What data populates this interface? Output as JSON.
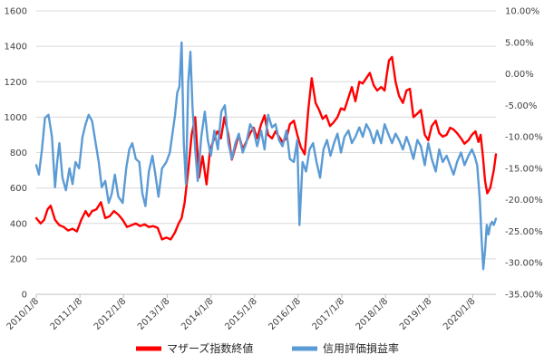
{
  "chart_data": {
    "type": "line",
    "title": "",
    "xlabel": "",
    "ylabel": "",
    "ylim_left": [
      0,
      1600
    ],
    "ylim_right": [
      -35,
      10
    ],
    "y_left_ticks": [
      "0",
      "200",
      "400",
      "600",
      "800",
      "1000",
      "1200",
      "1400",
      "1600"
    ],
    "y_right_ticks": [
      "-35.00%",
      "-30.00%",
      "-25.00%",
      "-20.00%",
      "-15.00%",
      "-10.00%",
      "-5.00%",
      "0.00%",
      "5.00%",
      "10.00%"
    ],
    "x_ticks": [
      "2010/1/8",
      "2011/1/8",
      "2012/1/8",
      "2013/1/8",
      "2014/1/8",
      "2015/1/8",
      "2016/1/8",
      "2017/1/8",
      "2018/1/8",
      "2019/1/8",
      "2020/1/8"
    ],
    "x_range": [
      2010.02,
      2020.55
    ],
    "grid": true,
    "legend_position": "bottom",
    "series": [
      {
        "name": "マザーズ指数終値",
        "color": "#ff0000",
        "axis": "left",
        "x": [
          2010.02,
          2010.12,
          2010.2,
          2010.28,
          2010.35,
          2010.45,
          2010.55,
          2010.65,
          2010.75,
          2010.85,
          2010.95,
          2011.05,
          2011.15,
          2011.22,
          2011.3,
          2011.4,
          2011.5,
          2011.6,
          2011.7,
          2011.8,
          2011.9,
          2012.0,
          2012.1,
          2012.2,
          2012.3,
          2012.4,
          2012.5,
          2012.6,
          2012.7,
          2012.8,
          2012.9,
          2013.0,
          2013.1,
          2013.2,
          2013.28,
          2013.35,
          2013.42,
          2013.5,
          2013.58,
          2013.66,
          2013.75,
          2013.83,
          2013.92,
          2014.0,
          2014.08,
          2014.17,
          2014.25,
          2014.33,
          2014.42,
          2014.5,
          2014.58,
          2014.66,
          2014.75,
          2014.83,
          2014.92,
          2015.0,
          2015.08,
          2015.17,
          2015.25,
          2015.33,
          2015.42,
          2015.5,
          2015.58,
          2015.66,
          2015.75,
          2015.83,
          2015.92,
          2016.0,
          2016.08,
          2016.17,
          2016.25,
          2016.33,
          2016.42,
          2016.5,
          2016.58,
          2016.66,
          2016.75,
          2016.83,
          2016.92,
          2017.0,
          2017.08,
          2017.17,
          2017.25,
          2017.33,
          2017.42,
          2017.5,
          2017.58,
          2017.66,
          2017.75,
          2017.83,
          2017.92,
          2018.0,
          2018.05,
          2018.1,
          2018.17,
          2018.25,
          2018.33,
          2018.42,
          2018.5,
          2018.58,
          2018.66,
          2018.75,
          2018.83,
          2018.92,
          2019.0,
          2019.08,
          2019.17,
          2019.25,
          2019.33,
          2019.42,
          2019.5,
          2019.58,
          2019.66,
          2019.75,
          2019.83,
          2019.92,
          2020.0,
          2020.08,
          2020.15,
          2020.2,
          2020.25,
          2020.3,
          2020.35,
          2020.42,
          2020.5,
          2020.55
        ],
        "y": [
          430,
          400,
          420,
          480,
          500,
          420,
          390,
          380,
          360,
          370,
          355,
          420,
          470,
          440,
          470,
          480,
          520,
          430,
          440,
          470,
          450,
          420,
          380,
          390,
          400,
          385,
          395,
          380,
          385,
          375,
          310,
          320,
          310,
          350,
          400,
          430,
          520,
          700,
          900,
          1000,
          660,
          780,
          620,
          810,
          870,
          920,
          880,
          1000,
          900,
          760,
          830,
          900,
          820,
          860,
          910,
          940,
          880,
          960,
          1010,
          900,
          880,
          920,
          890,
          860,
          880,
          960,
          980,
          900,
          830,
          790,
          1040,
          1220,
          1080,
          1040,
          990,
          1010,
          950,
          970,
          1000,
          1050,
          1040,
          1110,
          1170,
          1090,
          1200,
          1190,
          1220,
          1250,
          1180,
          1150,
          1170,
          1150,
          1240,
          1320,
          1340,
          1200,
          1120,
          1080,
          1150,
          1160,
          1000,
          1020,
          1040,
          900,
          870,
          950,
          980,
          910,
          890,
          900,
          940,
          930,
          910,
          880,
          850,
          870,
          900,
          920,
          860,
          900,
          780,
          640,
          570,
          600,
          700,
          790
        ]
      },
      {
        "name": "信用評価損益率",
        "color": "#5b9bd5",
        "axis": "right",
        "x": [
          2010.02,
          2010.08,
          2010.15,
          2010.22,
          2010.3,
          2010.38,
          2010.45,
          2010.5,
          2010.55,
          2010.62,
          2010.7,
          2010.78,
          2010.85,
          2010.92,
          2011.0,
          2011.08,
          2011.15,
          2011.22,
          2011.3,
          2011.38,
          2011.45,
          2011.52,
          2011.6,
          2011.68,
          2011.75,
          2011.82,
          2011.9,
          2012.0,
          2012.08,
          2012.15,
          2012.22,
          2012.3,
          2012.38,
          2012.45,
          2012.52,
          2012.6,
          2012.68,
          2012.75,
          2012.82,
          2012.9,
          2013.0,
          2013.08,
          2013.15,
          2013.2,
          2013.25,
          2013.3,
          2013.35,
          2013.4,
          2013.45,
          2013.5,
          2013.55,
          2013.6,
          2013.66,
          2013.72,
          2013.8,
          2013.88,
          2013.95,
          2014.02,
          2014.1,
          2014.18,
          2014.26,
          2014.34,
          2014.42,
          2014.5,
          2014.58,
          2014.66,
          2014.75,
          2014.83,
          2014.92,
          2015.0,
          2015.08,
          2015.17,
          2015.25,
          2015.33,
          2015.42,
          2015.5,
          2015.58,
          2015.66,
          2015.75,
          2015.83,
          2015.92,
          2016.0,
          2016.05,
          2016.12,
          2016.2,
          2016.28,
          2016.36,
          2016.44,
          2016.52,
          2016.6,
          2016.68,
          2016.76,
          2016.84,
          2016.92,
          2017.0,
          2017.08,
          2017.17,
          2017.25,
          2017.33,
          2017.42,
          2017.5,
          2017.58,
          2017.66,
          2017.75,
          2017.83,
          2017.92,
          2018.0,
          2018.08,
          2018.17,
          2018.25,
          2018.33,
          2018.42,
          2018.5,
          2018.58,
          2018.66,
          2018.75,
          2018.83,
          2018.92,
          2019.0,
          2019.08,
          2019.17,
          2019.25,
          2019.33,
          2019.42,
          2019.5,
          2019.58,
          2019.66,
          2019.75,
          2019.83,
          2019.92,
          2020.0,
          2020.06,
          2020.12,
          2020.18,
          2020.22,
          2020.26,
          2020.3,
          2020.34,
          2020.38,
          2020.42,
          2020.46,
          2020.5,
          2020.55
        ],
        "y": [
          -14.5,
          -16.0,
          -12.0,
          -7.0,
          -6.5,
          -10.0,
          -18.0,
          -14.0,
          -11.0,
          -16.5,
          -18.5,
          -15.0,
          -17.5,
          -14.0,
          -15.0,
          -10.0,
          -8.0,
          -6.5,
          -7.5,
          -11.0,
          -14.0,
          -18.0,
          -17.0,
          -20.5,
          -19.0,
          -16.0,
          -19.5,
          -20.5,
          -15.0,
          -12.0,
          -11.0,
          -13.5,
          -14.0,
          -19.0,
          -21.0,
          -15.5,
          -13.0,
          -16.0,
          -19.5,
          -15.0,
          -14.0,
          -12.5,
          -9.0,
          -6.5,
          -3.0,
          -2.0,
          5.0,
          -11.0,
          -17.5,
          -1.5,
          3.5,
          -5.5,
          -12.0,
          -17.0,
          -10.0,
          -6.0,
          -10.5,
          -13.0,
          -9.0,
          -12.0,
          -6.0,
          -5.0,
          -11.0,
          -13.5,
          -11.0,
          -9.5,
          -12.5,
          -11.0,
          -8.0,
          -9.0,
          -11.5,
          -9.0,
          -12.0,
          -6.5,
          -8.5,
          -8.0,
          -10.5,
          -11.5,
          -9.0,
          -13.5,
          -14.0,
          -10.5,
          -24.0,
          -14.0,
          -15.5,
          -12.0,
          -11.0,
          -14.0,
          -16.5,
          -12.0,
          -10.5,
          -13.0,
          -11.0,
          -9.5,
          -12.5,
          -10.0,
          -9.0,
          -11.0,
          -10.0,
          -8.5,
          -10.0,
          -8.0,
          -9.0,
          -11.0,
          -9.0,
          -11.0,
          -8.0,
          -9.5,
          -11.0,
          -9.5,
          -10.5,
          -12.0,
          -10.0,
          -11.5,
          -13.5,
          -10.5,
          -11.5,
          -14.5,
          -11.0,
          -13.5,
          -15.5,
          -12.0,
          -14.0,
          -13.0,
          -14.5,
          -16.0,
          -14.0,
          -12.5,
          -14.5,
          -13.0,
          -12.0,
          -13.0,
          -14.5,
          -20.0,
          -26.0,
          -31.0,
          -28.0,
          -24.0,
          -25.5,
          -24.0,
          -23.5,
          -24.0,
          -23.0
        ]
      }
    ]
  }
}
